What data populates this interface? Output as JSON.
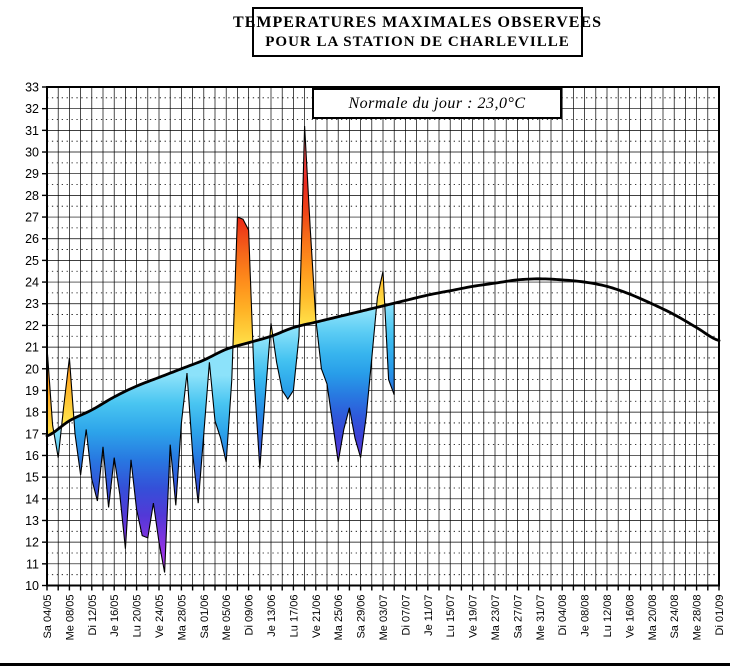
{
  "title": {
    "line1": "TEMPERATURES MAXIMALES OBSERVEES",
    "line2": "POUR LA STATION DE CHARLEVILLE"
  },
  "annotation": {
    "text": "Normale du jour : 23,0°C",
    "normal_of_day_celsius": "23,0"
  },
  "chart_data": {
    "type": "area",
    "title": "TEMPERATURES MAXIMALES OBSERVEES POUR LA STATION DE CHARLEVILLE",
    "xlabel": "",
    "ylabel": "",
    "ylim": [
      10,
      33
    ],
    "y_ticks": [
      10,
      11,
      12,
      13,
      14,
      15,
      16,
      17,
      18,
      19,
      20,
      21,
      22,
      23,
      24,
      25,
      26,
      27,
      28,
      29,
      30,
      31,
      32,
      33
    ],
    "grid": {
      "h_major_step": 1,
      "h_minor_step": 0.5,
      "v_step_days": 2,
      "legend": "none"
    },
    "x_tick_interval_days": 4,
    "x_tick_labels": [
      "Sa 04/05",
      "Me 08/05",
      "Di 12/05",
      "Je 16/05",
      "Lu 20/05",
      "Ve 24/05",
      "Ma 28/05",
      "Sa 01/06",
      "Me 05/06",
      "Di 09/06",
      "Je 13/06",
      "Lu 17/06",
      "Ve 21/06",
      "Ma 25/06",
      "Sa 29/06",
      "Me 03/07",
      "Di 07/07",
      "Je 11/07",
      "Lu 15/07",
      "Ve 19/07",
      "Ma 23/07",
      "Sa 27/07",
      "Me 31/07",
      "Di 04/08",
      "Je 08/08",
      "Lu 12/08",
      "Ve 16/08",
      "Ma 20/08",
      "Sa 24/08",
      "Me 28/08",
      "Di 01/09"
    ],
    "series": [
      {
        "name": "Normale saisonniere",
        "style": "black-curve",
        "step_days": 4,
        "start_date": "04/05",
        "end_date": "01/09",
        "values": [
          16.9,
          17.6,
          18.1,
          18.7,
          19.2,
          19.6,
          20.0,
          20.4,
          20.9,
          21.2,
          21.5,
          21.9,
          22.15,
          22.4,
          22.65,
          22.9,
          23.15,
          23.4,
          23.6,
          23.8,
          23.95,
          24.1,
          24.15,
          24.1,
          24.0,
          23.8,
          23.45,
          23.0,
          22.5,
          21.9,
          21.3
        ]
      },
      {
        "name": "Temperatures maximales observees",
        "style": "deviation-filled-area",
        "step_days": 1,
        "start_date": "04/05",
        "end_date": "05/07",
        "values": [
          21.0,
          17.4,
          15.9,
          18.3,
          20.5,
          17.0,
          15.1,
          17.2,
          14.9,
          13.9,
          16.4,
          13.6,
          15.9,
          14.2,
          11.7,
          15.8,
          13.5,
          12.3,
          12.2,
          13.8,
          12.0,
          10.6,
          16.5,
          13.7,
          17.5,
          19.8,
          16.1,
          13.8,
          17.0,
          20.3,
          17.6,
          16.8,
          15.7,
          19.5,
          27.0,
          26.9,
          26.4,
          19.5,
          15.4,
          18.8,
          22.1,
          20.3,
          19.0,
          18.6,
          19.0,
          21.5,
          31.2,
          26.5,
          22.3,
          20.0,
          19.3,
          17.5,
          15.7,
          17.2,
          18.2,
          16.8,
          15.9,
          17.8,
          20.5,
          23.3,
          24.5,
          19.5,
          18.8
        ]
      }
    ],
    "colors": {
      "curve": "#000000",
      "grid": "#000000",
      "background": "#ffffff",
      "above_normal_ramp": [
        {
          "at": 0.0,
          "color": "#ffe14a"
        },
        {
          "at": 1.5,
          "color": "#ffb627"
        },
        {
          "at": 3.0,
          "color": "#ff8c1a"
        },
        {
          "at": 4.5,
          "color": "#f4611a"
        },
        {
          "at": 6.0,
          "color": "#ea2314"
        },
        {
          "at": 7.5,
          "color": "#e93a3a"
        },
        {
          "at": 9.5,
          "color": "#f28a8a"
        }
      ],
      "below_normal_ramp": [
        {
          "at": 0.0,
          "color": "#8ce2fa"
        },
        {
          "at": 1.5,
          "color": "#3fc0f0"
        },
        {
          "at": 3.0,
          "color": "#269ae8"
        },
        {
          "at": 4.5,
          "color": "#2a62dc"
        },
        {
          "at": 6.0,
          "color": "#3f3cd4"
        },
        {
          "at": 7.5,
          "color": "#7c31dd"
        },
        {
          "at": 9.0,
          "color": "#b93af0"
        }
      ]
    }
  }
}
